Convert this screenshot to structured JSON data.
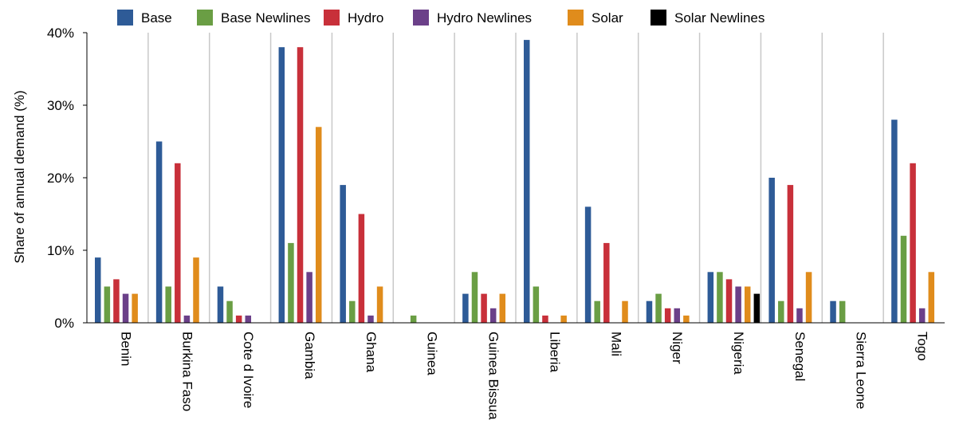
{
  "chart_data": {
    "type": "bar",
    "ylabel": "Share of annual demand (%)",
    "xlabel": "",
    "ylim": [
      0,
      40
    ],
    "yticks": [
      0,
      10,
      20,
      30,
      40
    ],
    "ytick_labels": [
      "0%",
      "10%",
      "20%",
      "30%",
      "40%"
    ],
    "legend_position": "top",
    "grid": "vertical separators between categories",
    "categories": [
      "Benin",
      "Burkina Faso",
      "Cote d Ivoire",
      "Gambia",
      "Ghana",
      "Guinea",
      "Guinea Bissua",
      "Liberia",
      "Mali",
      "Niger",
      "Nigeria",
      "Senegal",
      "Sierra Leone",
      "Togo"
    ],
    "series": [
      {
        "name": "Base",
        "color": "#2e5b97",
        "values": [
          9,
          25,
          5,
          38,
          19,
          0,
          4,
          39,
          16,
          3,
          7,
          20,
          3,
          28
        ]
      },
      {
        "name": "Base Newlines",
        "color": "#6a9e44",
        "values": [
          5,
          5,
          3,
          11,
          3,
          1,
          7,
          5,
          3,
          4,
          7,
          3,
          3,
          12
        ]
      },
      {
        "name": "Hydro",
        "color": "#c8303a",
        "values": [
          6,
          22,
          1,
          38,
          15,
          0,
          4,
          1,
          11,
          2,
          6,
          19,
          0,
          22
        ]
      },
      {
        "name": "Hydro Newlines",
        "color": "#6b4089",
        "values": [
          4,
          1,
          1,
          7,
          1,
          0,
          2,
          0,
          0,
          2,
          5,
          2,
          0,
          2
        ]
      },
      {
        "name": "Solar",
        "color": "#e08c1c",
        "values": [
          4,
          9,
          0,
          27,
          5,
          0,
          4,
          1,
          3,
          1,
          5,
          7,
          0,
          7
        ]
      },
      {
        "name": "Solar Newlines",
        "color": "#000000",
        "values": [
          0,
          0,
          0,
          0,
          0,
          0,
          0,
          0,
          0,
          0,
          4,
          0,
          0,
          0
        ]
      }
    ]
  }
}
